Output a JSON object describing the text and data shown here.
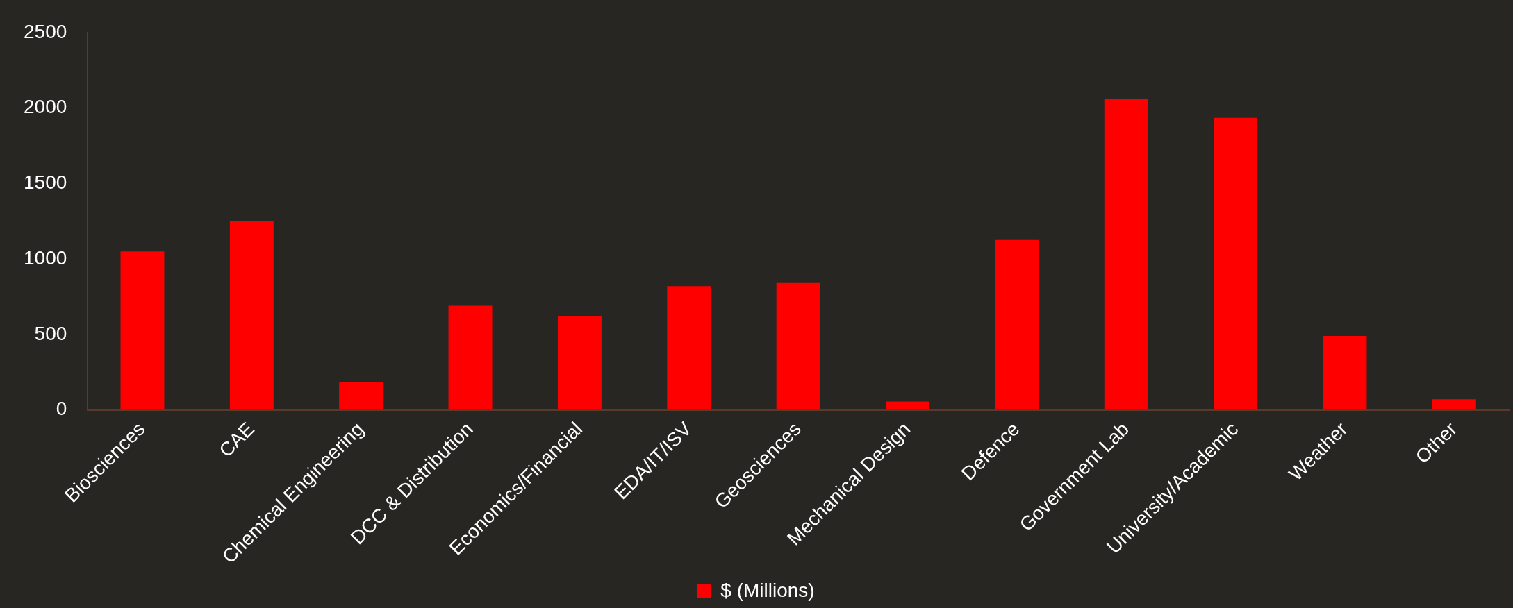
{
  "chart_data": {
    "type": "bar",
    "categories": [
      "Biosciences",
      "CAE",
      "Chemical Engineering",
      "DCC & Distribution",
      "Economics/Financial",
      "EDA/IT/ISV",
      "Geosciences",
      "Mechanical Design",
      "Defence",
      "Government Lab",
      "University/Academic",
      "Weather",
      "Other"
    ],
    "series": [
      {
        "name": "$ (Millions)",
        "color": "#ff0000",
        "values": [
          1050,
          1250,
          185,
          690,
          620,
          820,
          840,
          55,
          1125,
          2060,
          1935,
          490,
          70
        ]
      }
    ],
    "ylim": [
      0,
      2500
    ],
    "yticks": [
      0,
      500,
      1000,
      1500,
      2000,
      2500
    ],
    "grid": false,
    "legend": "bottom"
  }
}
